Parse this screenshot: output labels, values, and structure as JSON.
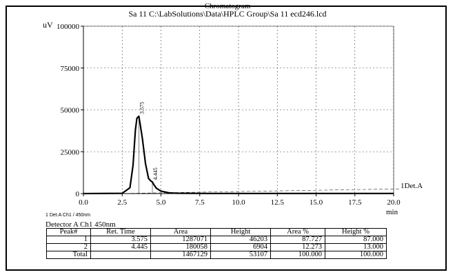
{
  "header": {
    "title": "Chromatogram",
    "subtitle": "Sa 11 C:\\LabSolutions\\Data\\HPLC Group\\Sa 11    ecd246.lcd"
  },
  "chart_data": {
    "type": "line",
    "ylabel": "uV",
    "xlabel": "min",
    "xlim": [
      0,
      20
    ],
    "ylim": [
      0,
      100000
    ],
    "x_ticks": [
      "0.0",
      "2.5",
      "5.0",
      "7.5",
      "10.0",
      "12.5",
      "15.0",
      "17.5",
      "20.0"
    ],
    "y_ticks": [
      "0",
      "25000",
      "50000",
      "75000",
      "100000"
    ],
    "grid": true,
    "series": [
      {
        "name": "1Det.A",
        "x": [
          0,
          2.5,
          3.0,
          3.2,
          3.35,
          3.45,
          3.575,
          3.65,
          3.8,
          4.0,
          4.2,
          4.35,
          4.445,
          4.55,
          4.7,
          5.0,
          5.5,
          6,
          8,
          10,
          12,
          14,
          16,
          18,
          20
        ],
        "y": [
          0,
          150,
          3500,
          17000,
          38000,
          45000,
          46200,
          42000,
          33000,
          18000,
          9000,
          7500,
          6900,
          5200,
          3200,
          1500,
          500,
          200,
          100,
          100,
          100,
          100,
          100,
          100,
          100
        ]
      }
    ],
    "peak_labels": [
      {
        "x": 3.575,
        "label": "3.575"
      },
      {
        "x": 4.445,
        "label": "4.445"
      }
    ]
  },
  "signal_label": "1  Det.A Ch1 / 450nm",
  "detector_label": "Detector A Ch1 450nm",
  "table": {
    "headers": [
      "Peak#",
      "Ret. Time",
      "Area",
      "Height",
      "Area %",
      "Height %"
    ],
    "rows": [
      [
        "1",
        "3.575",
        "1287071",
        "46203",
        "87.727",
        "87.000"
      ],
      [
        "2",
        "4.445",
        "180058",
        "6904",
        "12.273",
        "13.000"
      ]
    ],
    "total": [
      "Total",
      "",
      "1467129",
      "53107",
      "100.000",
      "100.000"
    ]
  }
}
